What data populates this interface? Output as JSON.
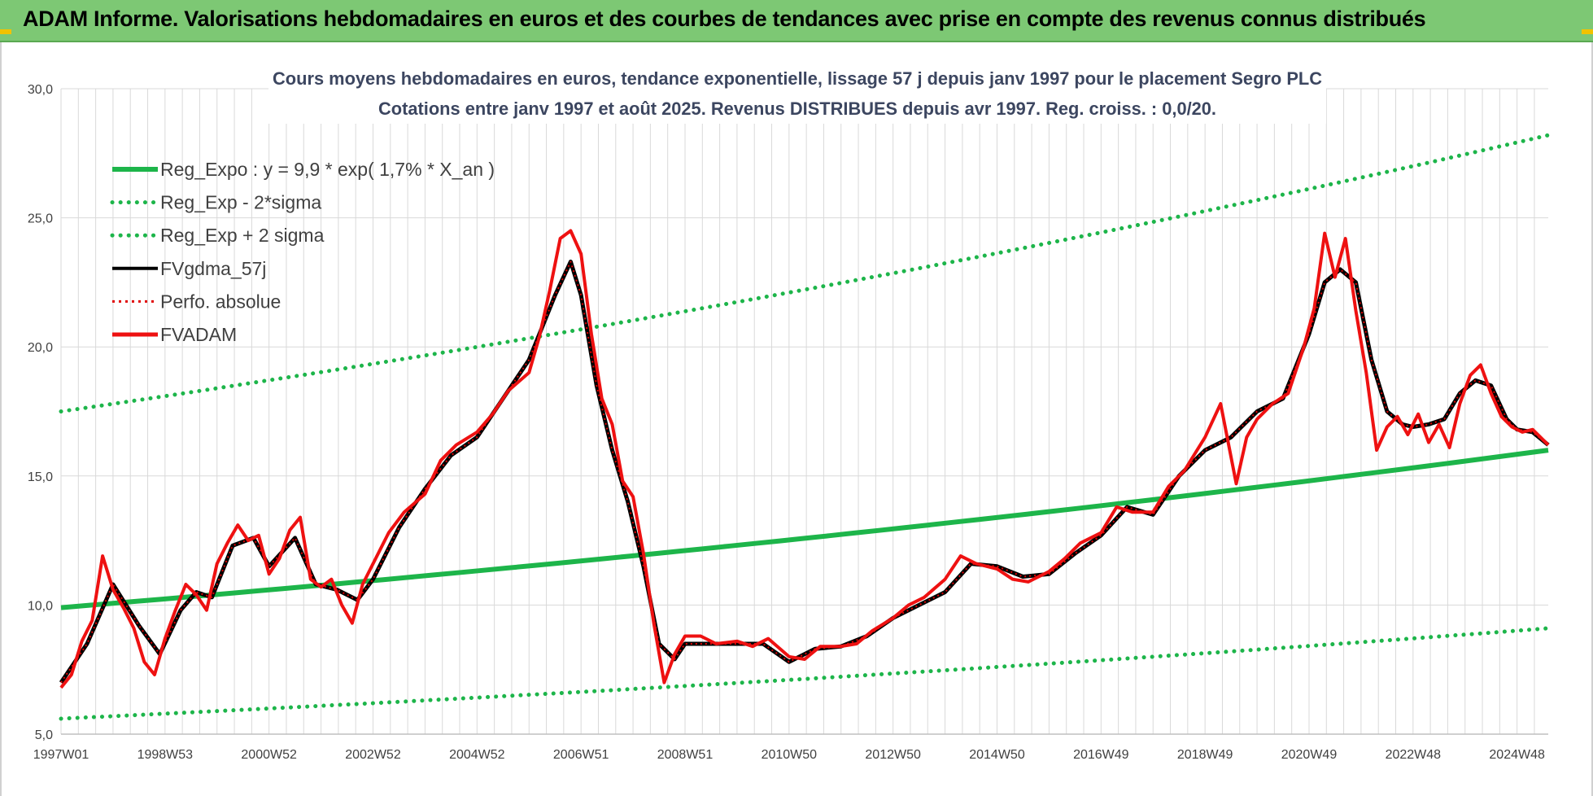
{
  "banner": {
    "title": "ADAM Informe. Valorisations hebdomadaires en euros et des courbes de tendances avec prise en compte des revenus connus distribués"
  },
  "colors": {
    "banner": "#7dc874",
    "regression": "#1db54a",
    "sigma": "#1db54a",
    "smoothed": "#000000",
    "perfo": "#e00000",
    "fvadam": "#ee1111",
    "grid": "#d9d9d9"
  },
  "chart_data": {
    "type": "line",
    "title": "Cours moyens hebdomadaires en euros, tendance exponentielle, lissage 57 j depuis janv 1997 pour le placement Segro PLC",
    "subtitle": "Cotations entre janv 1997 et août 2025. Revenus DISTRIBUES depuis avr 1997. Reg. croiss. : 0,0/20.",
    "xlabel": "",
    "ylabel": "",
    "x_tick_labels": [
      "1997W01",
      "1998W53",
      "2000W52",
      "2002W52",
      "2004W52",
      "2006W51",
      "2008W51",
      "2010W50",
      "2012W50",
      "2014W50",
      "2016W49",
      "2018W49",
      "2020W49",
      "2022W48",
      "2024W48"
    ],
    "x_ticks_years": [
      1997.0,
      1999.0,
      2001.0,
      2003.0,
      2005.0,
      2007.0,
      2009.0,
      2011.0,
      2013.0,
      2015.0,
      2017.0,
      2019.0,
      2021.0,
      2023.0,
      2025.0
    ],
    "xlim": [
      1997.0,
      2025.6
    ],
    "ylim": [
      5,
      30
    ],
    "y_ticks": [
      "5,0",
      "10,0",
      "15,0",
      "20,0",
      "25,0",
      "30,0"
    ],
    "y_tick_values": [
      5,
      10,
      15,
      20,
      25,
      30
    ],
    "grid": true,
    "legend_position": "top-left",
    "legend": [
      {
        "name": "Reg_Expo : y = 9,9 * exp( 1,7% *  X_an )",
        "style": "solid-green"
      },
      {
        "name": "Reg_Exp - 2*sigma",
        "style": "dotted-green"
      },
      {
        "name": "Reg_Exp + 2 sigma",
        "style": "dotted-green"
      },
      {
        "name": "FVgdma_57j",
        "style": "solid-black"
      },
      {
        "name": "Perfo. absolue",
        "style": "dotted-red"
      },
      {
        "name": "FVADAM",
        "style": "solid-red"
      }
    ],
    "series": [
      {
        "name": "Reg_Expo : y = 9,9 * exp( 1,7% *  X_an )",
        "x": [
          1997.0,
          2025.6
        ],
        "y": [
          9.9,
          16.0
        ]
      },
      {
        "name": "Reg_Exp - 2*sigma",
        "x": [
          1997.0,
          2025.6
        ],
        "y": [
          5.6,
          9.1
        ]
      },
      {
        "name": "Reg_Exp + 2 sigma",
        "x": [
          1997.0,
          2025.6
        ],
        "y": [
          17.5,
          28.2
        ]
      },
      {
        "name": "FVgdma_57j",
        "x": [
          1997.0,
          1997.5,
          1998.0,
          1998.5,
          1998.9,
          1999.3,
          1999.6,
          1999.9,
          2000.3,
          2000.7,
          2001.0,
          2001.5,
          2001.9,
          2002.3,
          2002.7,
          2003.0,
          2003.5,
          2004.0,
          2004.5,
          2005.0,
          2005.5,
          2006.0,
          2006.5,
          2006.8,
          2007.0,
          2007.3,
          2007.6,
          2007.9,
          2008.2,
          2008.5,
          2008.8,
          2009.0,
          2009.5,
          2010.0,
          2010.5,
          2011.0,
          2011.5,
          2012.0,
          2012.5,
          2013.0,
          2013.5,
          2014.0,
          2014.5,
          2015.0,
          2015.5,
          2016.0,
          2016.5,
          2017.0,
          2017.5,
          2018.0,
          2018.5,
          2019.0,
          2019.5,
          2020.0,
          2020.5,
          2021.0,
          2021.3,
          2021.6,
          2021.9,
          2022.2,
          2022.5,
          2022.8,
          2023.0,
          2023.3,
          2023.6,
          2023.9,
          2024.2,
          2024.5,
          2024.8,
          2025.0,
          2025.3,
          2025.6
        ],
        "y": [
          7.0,
          8.5,
          10.8,
          9.2,
          8.1,
          9.8,
          10.5,
          10.3,
          12.3,
          12.6,
          11.5,
          12.6,
          10.8,
          10.6,
          10.2,
          11.0,
          13.0,
          14.5,
          15.8,
          16.5,
          18.0,
          19.5,
          22.0,
          23.3,
          22.0,
          18.5,
          16.0,
          14.0,
          11.5,
          8.5,
          7.9,
          8.5,
          8.5,
          8.5,
          8.5,
          7.8,
          8.3,
          8.4,
          8.8,
          9.5,
          10.0,
          10.5,
          11.6,
          11.5,
          11.1,
          11.2,
          12.0,
          12.7,
          13.8,
          13.5,
          15.0,
          16.0,
          16.5,
          17.5,
          18.0,
          20.5,
          22.5,
          23.0,
          22.5,
          19.5,
          17.5,
          17.0,
          16.9,
          17.0,
          17.2,
          18.2,
          18.7,
          18.5,
          17.2,
          16.8,
          16.7,
          16.2
        ]
      },
      {
        "name": "Perfo. absolue",
        "x": [
          1997.0,
          1997.5,
          1998.0,
          1998.5,
          1998.9,
          1999.3,
          1999.6,
          1999.9,
          2000.3,
          2000.7,
          2001.0,
          2001.5,
          2001.9,
          2002.3,
          2002.7,
          2003.0,
          2003.5,
          2004.0,
          2004.5,
          2005.0,
          2005.5,
          2006.0,
          2006.5,
          2006.8,
          2007.0,
          2007.3,
          2007.6,
          2007.9,
          2008.2,
          2008.5,
          2008.8,
          2009.0,
          2009.5,
          2010.0,
          2010.5,
          2011.0,
          2011.5,
          2012.0,
          2012.5,
          2013.0,
          2013.5,
          2014.0,
          2014.5,
          2015.0,
          2015.5,
          2016.0,
          2016.5,
          2017.0,
          2017.5,
          2018.0,
          2018.5,
          2019.0,
          2019.5,
          2020.0,
          2020.5,
          2021.0,
          2021.3,
          2021.6,
          2021.9,
          2022.2,
          2022.5,
          2022.8,
          2023.0,
          2023.3,
          2023.6,
          2023.9,
          2024.2,
          2024.5,
          2024.8,
          2025.0,
          2025.3,
          2025.6
        ],
        "y": [
          7.0,
          8.5,
          10.8,
          9.2,
          8.1,
          9.8,
          10.5,
          10.3,
          12.3,
          12.6,
          11.5,
          12.6,
          10.8,
          10.6,
          10.2,
          11.0,
          13.0,
          14.5,
          15.8,
          16.5,
          18.0,
          19.5,
          22.0,
          23.3,
          22.0,
          18.5,
          16.0,
          14.0,
          11.5,
          8.5,
          7.9,
          8.5,
          8.5,
          8.5,
          8.5,
          7.8,
          8.3,
          8.4,
          8.8,
          9.5,
          10.0,
          10.5,
          11.6,
          11.5,
          11.1,
          11.2,
          12.0,
          12.7,
          13.8,
          13.5,
          15.0,
          16.0,
          16.5,
          17.5,
          18.0,
          20.5,
          22.5,
          23.0,
          22.5,
          19.5,
          17.5,
          17.0,
          16.9,
          17.0,
          17.2,
          18.2,
          18.7,
          18.5,
          17.2,
          16.8,
          16.7,
          16.2
        ]
      },
      {
        "name": "FVADAM",
        "x": [
          1997.0,
          1997.2,
          1997.4,
          1997.6,
          1997.8,
          1998.0,
          1998.2,
          1998.4,
          1998.6,
          1998.8,
          1999.0,
          1999.2,
          1999.4,
          1999.6,
          1999.8,
          2000.0,
          2000.2,
          2000.4,
          2000.6,
          2000.8,
          2001.0,
          2001.2,
          2001.4,
          2001.6,
          2001.8,
          2002.0,
          2002.2,
          2002.4,
          2002.6,
          2002.8,
          2003.0,
          2003.3,
          2003.6,
          2004.0,
          2004.3,
          2004.6,
          2005.0,
          2005.3,
          2005.6,
          2006.0,
          2006.2,
          2006.4,
          2006.6,
          2006.8,
          2007.0,
          2007.2,
          2007.4,
          2007.6,
          2007.8,
          2008.0,
          2008.2,
          2008.4,
          2008.6,
          2008.8,
          2009.0,
          2009.3,
          2009.6,
          2010.0,
          2010.3,
          2010.6,
          2011.0,
          2011.3,
          2011.6,
          2012.0,
          2012.3,
          2012.6,
          2013.0,
          2013.3,
          2013.6,
          2014.0,
          2014.3,
          2014.6,
          2015.0,
          2015.3,
          2015.6,
          2016.0,
          2016.3,
          2016.6,
          2017.0,
          2017.3,
          2017.6,
          2018.0,
          2018.3,
          2018.6,
          2019.0,
          2019.3,
          2019.6,
          2019.8,
          2020.0,
          2020.3,
          2020.6,
          2020.9,
          2021.1,
          2021.3,
          2021.5,
          2021.7,
          2021.9,
          2022.1,
          2022.3,
          2022.5,
          2022.7,
          2022.9,
          2023.1,
          2023.3,
          2023.5,
          2023.7,
          2023.9,
          2024.1,
          2024.3,
          2024.5,
          2024.7,
          2024.9,
          2025.1,
          2025.3,
          2025.6
        ],
        "y": [
          6.8,
          7.3,
          8.6,
          9.4,
          11.9,
          10.6,
          9.9,
          9.1,
          7.8,
          7.3,
          8.7,
          9.8,
          10.8,
          10.4,
          9.8,
          11.6,
          12.4,
          13.1,
          12.5,
          12.7,
          11.2,
          11.8,
          12.9,
          13.4,
          11.0,
          10.7,
          11.0,
          10.0,
          9.3,
          10.8,
          11.6,
          12.8,
          13.6,
          14.3,
          15.6,
          16.2,
          16.7,
          17.4,
          18.3,
          19.0,
          20.4,
          22.2,
          24.2,
          24.5,
          23.6,
          20.5,
          18.0,
          17.0,
          14.8,
          14.2,
          12.0,
          9.3,
          7.0,
          8.1,
          8.8,
          8.8,
          8.5,
          8.6,
          8.4,
          8.7,
          8.0,
          7.9,
          8.4,
          8.4,
          8.5,
          9.0,
          9.5,
          10.0,
          10.3,
          11.0,
          11.9,
          11.6,
          11.4,
          11.0,
          10.9,
          11.3,
          11.8,
          12.4,
          12.8,
          13.8,
          13.6,
          13.6,
          14.6,
          15.2,
          16.5,
          17.8,
          14.7,
          16.5,
          17.2,
          17.8,
          18.2,
          20.0,
          21.5,
          24.4,
          22.7,
          24.2,
          21.4,
          19.0,
          16.0,
          16.9,
          17.3,
          16.6,
          17.4,
          16.3,
          17.0,
          16.1,
          17.8,
          18.9,
          19.3,
          18.2,
          17.3,
          16.9,
          16.7,
          16.8,
          16.2
        ]
      }
    ]
  }
}
